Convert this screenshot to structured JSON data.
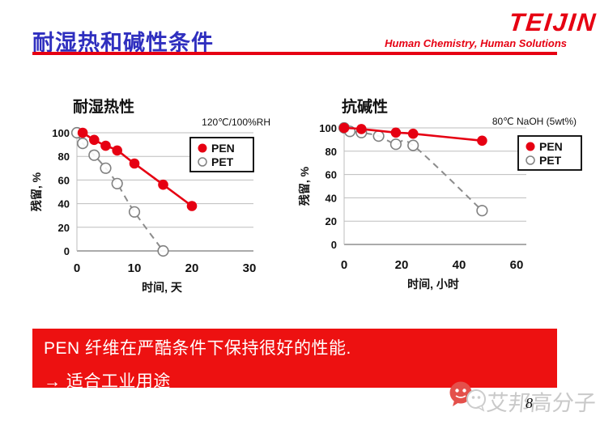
{
  "header": {
    "title": "耐湿热和碱性条件",
    "logo": "TEIJIN",
    "tagline": "Human Chemistry, Human Solutions"
  },
  "colors": {
    "teijin_red": "#e60012",
    "banner_red": "#ed1111",
    "title_blue": "#2f2fbf",
    "pet_gray": "#8c8c8c",
    "grid_gray": "#bdbdbd",
    "watermark_gray": "#c9c9c9"
  },
  "chart_data": [
    {
      "type": "line",
      "title": "耐湿热性",
      "condition": "120℃/100%RH",
      "xlabel": "时间, 天",
      "ylabel": "残留, %",
      "xlim": [
        0,
        30
      ],
      "ylim": [
        0,
        100
      ],
      "xticks": [
        0,
        10,
        20,
        30
      ],
      "yticks": [
        0,
        20,
        40,
        60,
        80,
        100
      ],
      "grid": "horizontal",
      "legend_position": "upper-right-inside",
      "series": [
        {
          "name": "PEN",
          "color": "#e60012",
          "line": "solid",
          "marker": "filled-circle",
          "points": [
            [
              1,
              100
            ],
            [
              3,
              94
            ],
            [
              5,
              89
            ],
            [
              7,
              85
            ],
            [
              10,
              74
            ],
            [
              15,
              56
            ],
            [
              20,
              38
            ]
          ]
        },
        {
          "name": "PET",
          "color": "#8c8c8c",
          "line": "dashed",
          "marker": "open-circle",
          "points": [
            [
              0,
              100
            ],
            [
              1,
              91
            ],
            [
              3,
              81
            ],
            [
              5,
              70
            ],
            [
              7,
              57
            ],
            [
              10,
              33
            ],
            [
              15,
              0
            ]
          ]
        }
      ]
    },
    {
      "type": "line",
      "title": "抗碱性",
      "condition": "80℃ NaOH (5wt%)",
      "xlabel": "时间, 小时",
      "ylabel": "残留, %",
      "xlim": [
        0,
        60
      ],
      "ylim": [
        0,
        100
      ],
      "xticks": [
        0,
        20,
        40,
        60
      ],
      "yticks": [
        0,
        20,
        40,
        60,
        80,
        100
      ],
      "grid": "horizontal",
      "legend_position": "upper-right-inside",
      "series": [
        {
          "name": "PEN",
          "color": "#e60012",
          "line": "solid",
          "marker": "filled-circle",
          "points": [
            [
              0,
              100
            ],
            [
              6,
              99
            ],
            [
              18,
              96
            ],
            [
              24,
              95
            ],
            [
              48,
              89
            ]
          ]
        },
        {
          "name": "PET",
          "color": "#8c8c8c",
          "line": "dashed",
          "marker": "open-circle",
          "points": [
            [
              0,
              100
            ],
            [
              2,
              97
            ],
            [
              6,
              96
            ],
            [
              12,
              93
            ],
            [
              18,
              86
            ],
            [
              24,
              85
            ],
            [
              48,
              29
            ]
          ]
        }
      ]
    }
  ],
  "banner": {
    "line1": "PEN 纤维在严酷条件下保持很好的性能.",
    "line2": "→ 适合工业用途"
  },
  "watermark": {
    "text": "艾邦高分子"
  },
  "page_number": "8"
}
